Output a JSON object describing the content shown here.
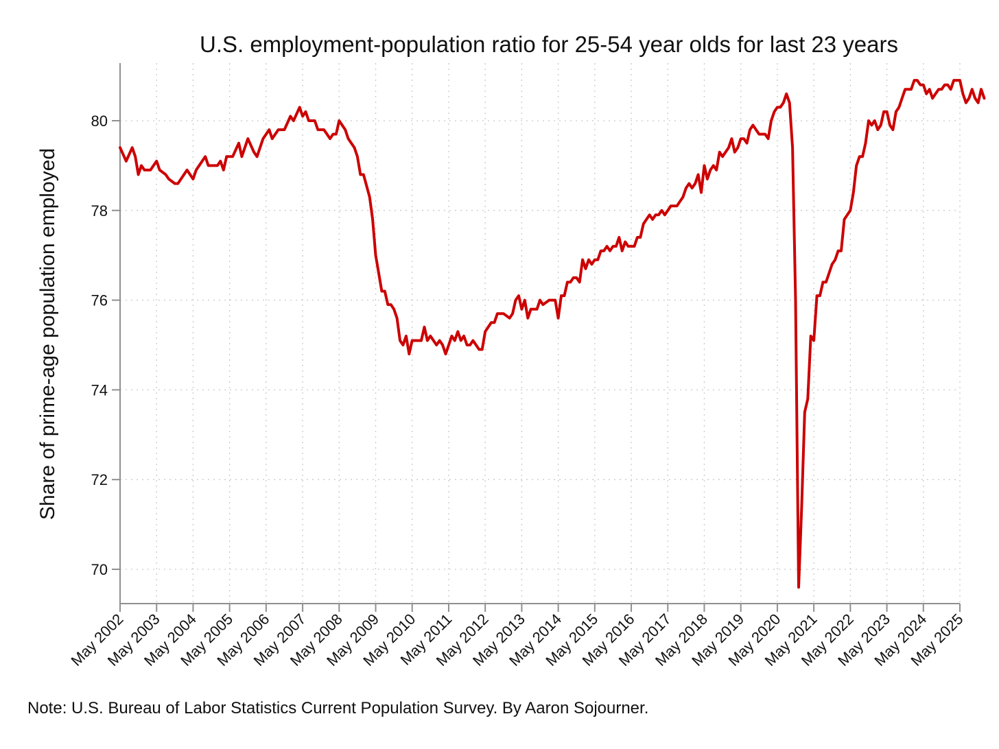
{
  "chart_data": {
    "type": "line",
    "title": "U.S. employment-population ratio for 25-54 year olds for last 23 years",
    "xlabel": "",
    "ylabel": "Share of prime-age population employed",
    "note": "Note: U.S. Bureau of Labor Statistics Current Population Survey. By Aaron Sojourner.",
    "ylim": [
      69.4,
      81.3
    ],
    "yticks": [
      70,
      72,
      74,
      76,
      78,
      80
    ],
    "xticks": [
      "May 2002",
      "May 2003",
      "May 2004",
      "May 2005",
      "May 2006",
      "May 2007",
      "May 2008",
      "May 2009",
      "May 2010",
      "May 2011",
      "May 2012",
      "May 2013",
      "May 2014",
      "May 2015",
      "May 2016",
      "May 2017",
      "May 2018",
      "May 2019",
      "May 2020",
      "May 2021",
      "May 2022",
      "May 2023",
      "May 2024",
      "May 2025"
    ],
    "xrange": [
      "2002-05",
      "2025-05"
    ],
    "grid": true,
    "line_color": "#cc0000",
    "series": [
      {
        "name": "",
        "points": [
          [
            "2002-05",
            79.4
          ],
          [
            "2002-07",
            79.1
          ],
          [
            "2002-09",
            79.4
          ],
          [
            "2002-10",
            79.2
          ],
          [
            "2002-11",
            78.8
          ],
          [
            "2002-12",
            79.0
          ],
          [
            "2003-01",
            78.9
          ],
          [
            "2003-03",
            78.9
          ],
          [
            "2003-05",
            79.1
          ],
          [
            "2003-06",
            78.9
          ],
          [
            "2003-08",
            78.8
          ],
          [
            "2003-09",
            78.7
          ],
          [
            "2003-11",
            78.6
          ],
          [
            "2003-12",
            78.6
          ],
          [
            "2004-03",
            78.9
          ],
          [
            "2004-05",
            78.7
          ],
          [
            "2004-06",
            78.9
          ],
          [
            "2004-08",
            79.1
          ],
          [
            "2004-09",
            79.2
          ],
          [
            "2004-10",
            79.0
          ],
          [
            "2004-12",
            79.0
          ],
          [
            "2005-01",
            79.0
          ],
          [
            "2005-02",
            79.1
          ],
          [
            "2005-03",
            78.9
          ],
          [
            "2005-04",
            79.2
          ],
          [
            "2005-06",
            79.2
          ],
          [
            "2005-08",
            79.5
          ],
          [
            "2005-09",
            79.2
          ],
          [
            "2005-11",
            79.6
          ],
          [
            "2006-01",
            79.3
          ],
          [
            "2006-02",
            79.2
          ],
          [
            "2006-04",
            79.6
          ],
          [
            "2006-06",
            79.8
          ],
          [
            "2006-07",
            79.6
          ],
          [
            "2006-09",
            79.8
          ],
          [
            "2006-11",
            79.8
          ],
          [
            "2007-01",
            80.1
          ],
          [
            "2007-02",
            80.0
          ],
          [
            "2007-04",
            80.3
          ],
          [
            "2007-05",
            80.1
          ],
          [
            "2007-06",
            80.2
          ],
          [
            "2007-07",
            80.0
          ],
          [
            "2007-09",
            80.0
          ],
          [
            "2007-10",
            79.8
          ],
          [
            "2007-12",
            79.8
          ],
          [
            "2008-01",
            79.7
          ],
          [
            "2008-02",
            79.6
          ],
          [
            "2008-03",
            79.7
          ],
          [
            "2008-04",
            79.7
          ],
          [
            "2008-05",
            80.0
          ],
          [
            "2008-07",
            79.8
          ],
          [
            "2008-08",
            79.6
          ],
          [
            "2008-10",
            79.4
          ],
          [
            "2008-11",
            79.2
          ],
          [
            "2008-12",
            78.8
          ],
          [
            "2009-01",
            78.8
          ],
          [
            "2009-03",
            78.3
          ],
          [
            "2009-04",
            77.8
          ],
          [
            "2009-05",
            77.0
          ],
          [
            "2009-06",
            76.6
          ],
          [
            "2009-07",
            76.2
          ],
          [
            "2009-08",
            76.2
          ],
          [
            "2009-09",
            75.9
          ],
          [
            "2009-10",
            75.9
          ],
          [
            "2009-11",
            75.8
          ],
          [
            "2009-12",
            75.6
          ],
          [
            "2010-01",
            75.1
          ],
          [
            "2010-02",
            75.0
          ],
          [
            "2010-03",
            75.2
          ],
          [
            "2010-04",
            74.8
          ],
          [
            "2010-05",
            75.1
          ],
          [
            "2010-07",
            75.1
          ],
          [
            "2010-08",
            75.1
          ],
          [
            "2010-09",
            75.4
          ],
          [
            "2010-10",
            75.1
          ],
          [
            "2010-11",
            75.2
          ],
          [
            "2011-01",
            75.0
          ],
          [
            "2011-02",
            75.1
          ],
          [
            "2011-03",
            75.0
          ],
          [
            "2011-04",
            74.8
          ],
          [
            "2011-05",
            75.0
          ],
          [
            "2011-06",
            75.2
          ],
          [
            "2011-07",
            75.1
          ],
          [
            "2011-08",
            75.3
          ],
          [
            "2011-09",
            75.1
          ],
          [
            "2011-10",
            75.2
          ],
          [
            "2011-11",
            75.0
          ],
          [
            "2011-12",
            75.0
          ],
          [
            "2012-01",
            75.1
          ],
          [
            "2012-03",
            74.9
          ],
          [
            "2012-04",
            74.9
          ],
          [
            "2012-05",
            75.3
          ],
          [
            "2012-07",
            75.5
          ],
          [
            "2012-08",
            75.5
          ],
          [
            "2012-09",
            75.7
          ],
          [
            "2012-11",
            75.7
          ],
          [
            "2013-01",
            75.6
          ],
          [
            "2013-02",
            75.7
          ],
          [
            "2013-03",
            76.0
          ],
          [
            "2013-04",
            76.1
          ],
          [
            "2013-05",
            75.8
          ],
          [
            "2013-06",
            76.0
          ],
          [
            "2013-07",
            75.6
          ],
          [
            "2013-08",
            75.8
          ],
          [
            "2013-10",
            75.8
          ],
          [
            "2013-11",
            76.0
          ],
          [
            "2013-12",
            75.9
          ],
          [
            "2014-02",
            76.0
          ],
          [
            "2014-04",
            76.0
          ],
          [
            "2014-05",
            75.6
          ],
          [
            "2014-06",
            76.1
          ],
          [
            "2014-07",
            76.1
          ],
          [
            "2014-08",
            76.4
          ],
          [
            "2014-09",
            76.4
          ],
          [
            "2014-10",
            76.5
          ],
          [
            "2014-11",
            76.5
          ],
          [
            "2014-12",
            76.4
          ],
          [
            "2015-01",
            76.9
          ],
          [
            "2015-02",
            76.7
          ],
          [
            "2015-03",
            76.9
          ],
          [
            "2015-04",
            76.8
          ],
          [
            "2015-05",
            76.9
          ],
          [
            "2015-06",
            76.9
          ],
          [
            "2015-07",
            77.1
          ],
          [
            "2015-08",
            77.1
          ],
          [
            "2015-09",
            77.2
          ],
          [
            "2015-10",
            77.1
          ],
          [
            "2015-11",
            77.2
          ],
          [
            "2015-12",
            77.2
          ],
          [
            "2016-01",
            77.4
          ],
          [
            "2016-02",
            77.1
          ],
          [
            "2016-03",
            77.3
          ],
          [
            "2016-04",
            77.2
          ],
          [
            "2016-06",
            77.2
          ],
          [
            "2016-07",
            77.4
          ],
          [
            "2016-08",
            77.4
          ],
          [
            "2016-09",
            77.7
          ],
          [
            "2016-10",
            77.8
          ],
          [
            "2016-11",
            77.9
          ],
          [
            "2016-12",
            77.8
          ],
          [
            "2017-01",
            77.9
          ],
          [
            "2017-02",
            77.9
          ],
          [
            "2017-03",
            78.0
          ],
          [
            "2017-04",
            77.9
          ],
          [
            "2017-05",
            78.0
          ],
          [
            "2017-06",
            78.1
          ],
          [
            "2017-08",
            78.1
          ],
          [
            "2017-09",
            78.2
          ],
          [
            "2017-10",
            78.3
          ],
          [
            "2017-11",
            78.5
          ],
          [
            "2017-12",
            78.6
          ],
          [
            "2018-01",
            78.5
          ],
          [
            "2018-02",
            78.6
          ],
          [
            "2018-03",
            78.8
          ],
          [
            "2018-04",
            78.4
          ],
          [
            "2018-05",
            79.0
          ],
          [
            "2018-06",
            78.7
          ],
          [
            "2018-07",
            78.9
          ],
          [
            "2018-08",
            79.0
          ],
          [
            "2018-09",
            78.9
          ],
          [
            "2018-10",
            79.3
          ],
          [
            "2018-11",
            79.2
          ],
          [
            "2018-12",
            79.3
          ],
          [
            "2019-01",
            79.4
          ],
          [
            "2019-02",
            79.6
          ],
          [
            "2019-03",
            79.3
          ],
          [
            "2019-04",
            79.4
          ],
          [
            "2019-05",
            79.6
          ],
          [
            "2019-06",
            79.6
          ],
          [
            "2019-07",
            79.5
          ],
          [
            "2019-08",
            79.8
          ],
          [
            "2019-09",
            79.9
          ],
          [
            "2019-10",
            79.8
          ],
          [
            "2019-11",
            79.7
          ],
          [
            "2019-12",
            79.7
          ],
          [
            "2020-01",
            79.7
          ],
          [
            "2020-02",
            79.6
          ],
          [
            "2020-03",
            80.0
          ],
          [
            "2020-04",
            80.2
          ],
          [
            "2020-05",
            80.3
          ],
          [
            "2020-06",
            80.3
          ],
          [
            "2020-07",
            80.4
          ],
          [
            "2020-08",
            80.6
          ],
          [
            "2020-09",
            80.4
          ],
          [
            "2020-10",
            79.4
          ],
          [
            "2020-11",
            76.0
          ],
          [
            "2020-12",
            69.6
          ],
          [
            "2021-01",
            71.4
          ],
          [
            "2021-02",
            73.5
          ],
          [
            "2021-03",
            73.8
          ],
          [
            "2021-04",
            75.2
          ],
          [
            "2021-05",
            75.1
          ],
          [
            "2021-06",
            76.1
          ],
          [
            "2021-07",
            76.1
          ],
          [
            "2021-08",
            76.4
          ],
          [
            "2021-09",
            76.4
          ],
          [
            "2021-10",
            76.6
          ],
          [
            "2021-11",
            76.8
          ],
          [
            "2021-12",
            76.9
          ],
          [
            "2022-01",
            77.1
          ],
          [
            "2022-02",
            77.1
          ],
          [
            "2022-03",
            77.8
          ],
          [
            "2022-04",
            77.9
          ],
          [
            "2022-05",
            78.0
          ],
          [
            "2022-06",
            78.4
          ],
          [
            "2022-07",
            79.0
          ],
          [
            "2022-08",
            79.2
          ],
          [
            "2022-09",
            79.2
          ],
          [
            "2022-10",
            79.5
          ],
          [
            "2022-11",
            80.0
          ],
          [
            "2022-12",
            79.9
          ],
          [
            "2023-01",
            80.0
          ],
          [
            "2023-02",
            79.8
          ],
          [
            "2023-03",
            79.9
          ],
          [
            "2023-04",
            80.2
          ],
          [
            "2023-05",
            80.2
          ],
          [
            "2023-06",
            79.9
          ],
          [
            "2023-07",
            79.8
          ],
          [
            "2023-08",
            80.2
          ],
          [
            "2023-09",
            80.3
          ],
          [
            "2023-10",
            80.5
          ],
          [
            "2023-11",
            80.7
          ],
          [
            "2023-12",
            80.7
          ],
          [
            "2024-01",
            80.7
          ],
          [
            "2024-02",
            80.9
          ],
          [
            "2024-03",
            80.9
          ],
          [
            "2024-04",
            80.8
          ],
          [
            "2024-05",
            80.8
          ],
          [
            "2024-06",
            80.6
          ],
          [
            "2024-07",
            80.7
          ],
          [
            "2024-08",
            80.5
          ],
          [
            "2024-09",
            80.6
          ],
          [
            "2024-10",
            80.7
          ],
          [
            "2024-11",
            80.7
          ],
          [
            "2024-12",
            80.8
          ],
          [
            "2025-01",
            80.8
          ],
          [
            "2025-02",
            80.7
          ],
          [
            "2025-03",
            80.9
          ],
          [
            "2025-04",
            80.9
          ],
          [
            "2025-05",
            80.9
          ],
          [
            "2025-06",
            80.6
          ],
          [
            "2025-07",
            80.4
          ],
          [
            "2025-08",
            80.5
          ],
          [
            "2025-09",
            80.7
          ],
          [
            "2025-10",
            80.5
          ],
          [
            "2025-11",
            80.4
          ],
          [
            "2025-12",
            80.7
          ],
          [
            "2026-01",
            80.5
          ]
        ]
      }
    ]
  }
}
